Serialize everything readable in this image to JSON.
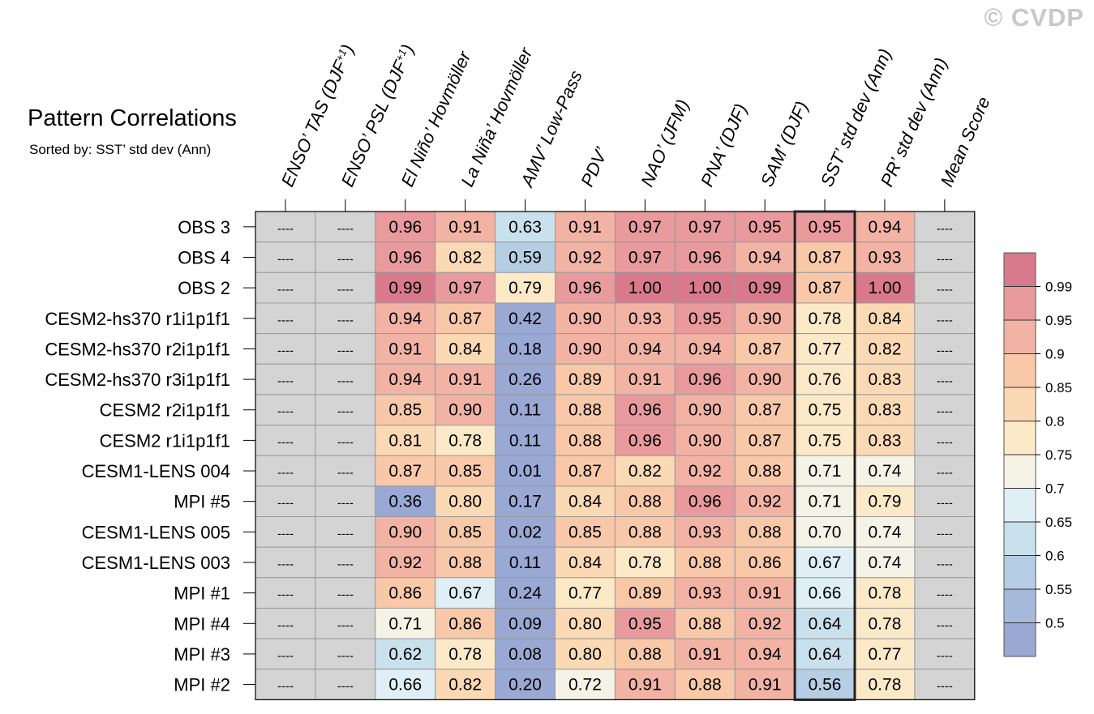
{
  "watermark": "© CVDP",
  "chart_data": {
    "type": "heatmap",
    "title": "Pattern Correlations",
    "subtitle": "Sorted by: SST’ std dev (Ann)",
    "columns": [
      {
        "pre": "ENSO’ TAS (DJF",
        "sup": "+1",
        "post": ")"
      },
      {
        "pre": "ENSO’ PSL (DJF",
        "sup": "+1",
        "post": ")"
      },
      {
        "pre": "El Niño’ Hovmöller",
        "sup": "",
        "post": ""
      },
      {
        "pre": "La Niña’ Hovmöller",
        "sup": "",
        "post": ""
      },
      {
        "pre": "AMV’ Low-Pass",
        "sup": "",
        "post": ""
      },
      {
        "pre": "PDV’",
        "sup": "",
        "post": ""
      },
      {
        "pre": "NAO’ (JFM)",
        "sup": "",
        "post": ""
      },
      {
        "pre": "PNA’ (DJF)",
        "sup": "",
        "post": ""
      },
      {
        "pre": "SAM’ (DJF)",
        "sup": "",
        "post": ""
      },
      {
        "pre": "SST’ std dev (Ann)",
        "sup": "",
        "post": ""
      },
      {
        "pre": "PR’ std dev (Ann)",
        "sup": "",
        "post": ""
      },
      {
        "pre": "Mean Score",
        "sup": "",
        "post": ""
      }
    ],
    "rows": [
      "OBS 3",
      "OBS 4",
      "OBS 2",
      "CESM2-hs370 r1i1p1f1",
      "CESM2-hs370 r2i1p1f1",
      "CESM2-hs370 r3i1p1f1",
      "CESM2 r2i1p1f1",
      "CESM2 r1i1p1f1",
      "CESM1-LENS 004",
      "MPI #5",
      "CESM1-LENS 005",
      "CESM1-LENS 003",
      "MPI #1",
      "MPI #4",
      "MPI #3",
      "MPI #2"
    ],
    "missing_label": "----",
    "values": [
      [
        null,
        null,
        "0.96",
        "0.91",
        "0.63",
        "0.91",
        "0.97",
        "0.97",
        "0.95",
        "0.95",
        "0.94",
        null
      ],
      [
        null,
        null,
        "0.96",
        "0.82",
        "0.59",
        "0.92",
        "0.97",
        "0.96",
        "0.94",
        "0.87",
        "0.93",
        null
      ],
      [
        null,
        null,
        "0.99",
        "0.97",
        "0.79",
        "0.96",
        "1.00",
        "1.00",
        "0.99",
        "0.87",
        "1.00",
        null
      ],
      [
        null,
        null,
        "0.94",
        "0.87",
        "0.42",
        "0.90",
        "0.93",
        "0.95",
        "0.90",
        "0.78",
        "0.84",
        null
      ],
      [
        null,
        null,
        "0.91",
        "0.84",
        "0.18",
        "0.90",
        "0.94",
        "0.94",
        "0.87",
        "0.77",
        "0.82",
        null
      ],
      [
        null,
        null,
        "0.94",
        "0.91",
        "0.26",
        "0.89",
        "0.91",
        "0.96",
        "0.90",
        "0.76",
        "0.83",
        null
      ],
      [
        null,
        null,
        "0.85",
        "0.90",
        "0.11",
        "0.88",
        "0.96",
        "0.90",
        "0.87",
        "0.75",
        "0.83",
        null
      ],
      [
        null,
        null,
        "0.81",
        "0.78",
        "0.11",
        "0.88",
        "0.96",
        "0.90",
        "0.87",
        "0.75",
        "0.83",
        null
      ],
      [
        null,
        null,
        "0.87",
        "0.85",
        "0.01",
        "0.87",
        "0.82",
        "0.92",
        "0.88",
        "0.71",
        "0.74",
        null
      ],
      [
        null,
        null,
        "0.36",
        "0.80",
        "0.17",
        "0.84",
        "0.88",
        "0.96",
        "0.92",
        "0.71",
        "0.79",
        null
      ],
      [
        null,
        null,
        "0.90",
        "0.85",
        "0.02",
        "0.85",
        "0.88",
        "0.93",
        "0.88",
        "0.70",
        "0.74",
        null
      ],
      [
        null,
        null,
        "0.92",
        "0.88",
        "0.11",
        "0.84",
        "0.78",
        "0.88",
        "0.86",
        "0.67",
        "0.74",
        null
      ],
      [
        null,
        null,
        "0.86",
        "0.67",
        "0.24",
        "0.77",
        "0.89",
        "0.93",
        "0.91",
        "0.66",
        "0.78",
        null
      ],
      [
        null,
        null,
        "0.71",
        "0.86",
        "0.09",
        "0.80",
        "0.95",
        "0.88",
        "0.92",
        "0.64",
        "0.78",
        null
      ],
      [
        null,
        null,
        "0.62",
        "0.78",
        "0.08",
        "0.80",
        "0.88",
        "0.91",
        "0.94",
        "0.64",
        "0.77",
        null
      ],
      [
        null,
        null,
        "0.66",
        "0.82",
        "0.20",
        "0.72",
        "0.91",
        "0.88",
        "0.91",
        "0.56",
        "0.78",
        null
      ]
    ],
    "highlighted_column": "SST’ std dev (Ann)",
    "colorbar": {
      "levels": [
        "0.99",
        "0.95",
        "0.9",
        "0.85",
        "0.8",
        "0.75",
        "0.7",
        "0.65",
        "0.6",
        "0.55",
        "0.5"
      ],
      "colors": [
        "#d97a8c",
        "#e89a9c",
        "#f2b3a4",
        "#f8c8a8",
        "#fbd9b4",
        "#fbe9c8",
        "#f4f3e6",
        "#dfeff5",
        "#c9e1ec",
        "#b6cee3",
        "#a7badc",
        "#9aa8d4"
      ]
    },
    "missing_color": "#d4d4d4"
  }
}
